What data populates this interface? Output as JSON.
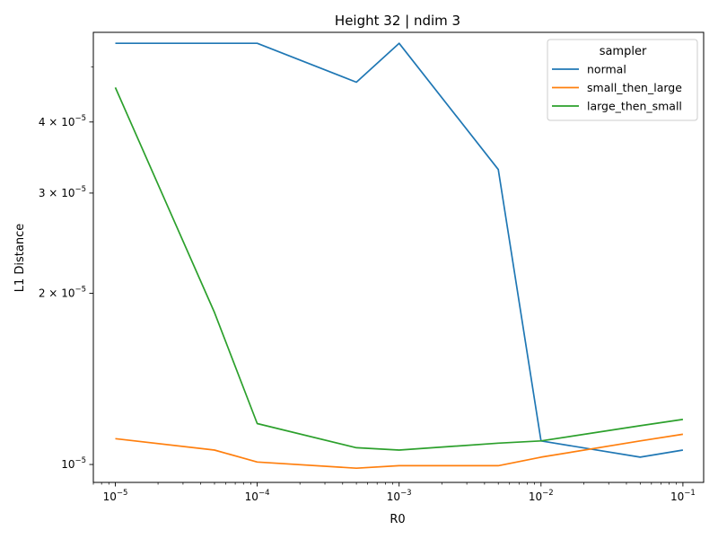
{
  "chart_data": {
    "type": "line",
    "title": "Height 32 | ndim 3",
    "xlabel": "R0",
    "ylabel": "L1 Distance",
    "xscale": "log",
    "yscale": "log",
    "xlim": [
      7e-06,
      0.14
    ],
    "ylim": [
      9.3e-06,
      5.75e-05
    ],
    "grid": false,
    "legend": {
      "title": "sampler",
      "placement": "upper right"
    },
    "x": [
      1e-05,
      5e-05,
      0.0001,
      0.0005,
      0.001,
      0.005,
      0.01,
      0.05,
      0.1
    ],
    "x_ticks": [
      {
        "value": 1e-05,
        "base": "10",
        "exp": "−5"
      },
      {
        "value": 0.0001,
        "base": "10",
        "exp": "−4"
      },
      {
        "value": 0.001,
        "base": "10",
        "exp": "−3"
      },
      {
        "value": 0.01,
        "base": "10",
        "exp": "−2"
      },
      {
        "value": 0.1,
        "base": "10",
        "exp": "−1"
      }
    ],
    "y_ticks": [
      {
        "value": 1e-05,
        "mant": "",
        "base": "10",
        "exp": "−5"
      },
      {
        "value": 2e-05,
        "mant": "2 × ",
        "base": "10",
        "exp": "−5"
      },
      {
        "value": 3e-05,
        "mant": "3 × ",
        "base": "10",
        "exp": "−5"
      },
      {
        "value": 4e-05,
        "mant": "4 × ",
        "base": "10",
        "exp": "−5"
      }
    ],
    "series": [
      {
        "name": "normal",
        "color": "#1f77b4",
        "values": [
          5.5e-05,
          5.5e-05,
          5.5e-05,
          4.7e-05,
          5.5e-05,
          3.3e-05,
          1.1e-05,
          1.03e-05,
          1.06e-05
        ]
      },
      {
        "name": "small_then_large",
        "color": "#ff7f0e",
        "values": [
          1.11e-05,
          1.06e-05,
          1.01e-05,
          9.85e-06,
          9.95e-06,
          9.95e-06,
          1.03e-05,
          1.1e-05,
          1.13e-05
        ]
      },
      {
        "name": "large_then_small",
        "color": "#2ca02c",
        "values": [
          4.6e-05,
          1.85e-05,
          1.18e-05,
          1.07e-05,
          1.06e-05,
          1.09e-05,
          1.1e-05,
          1.17e-05,
          1.2e-05
        ]
      }
    ]
  }
}
